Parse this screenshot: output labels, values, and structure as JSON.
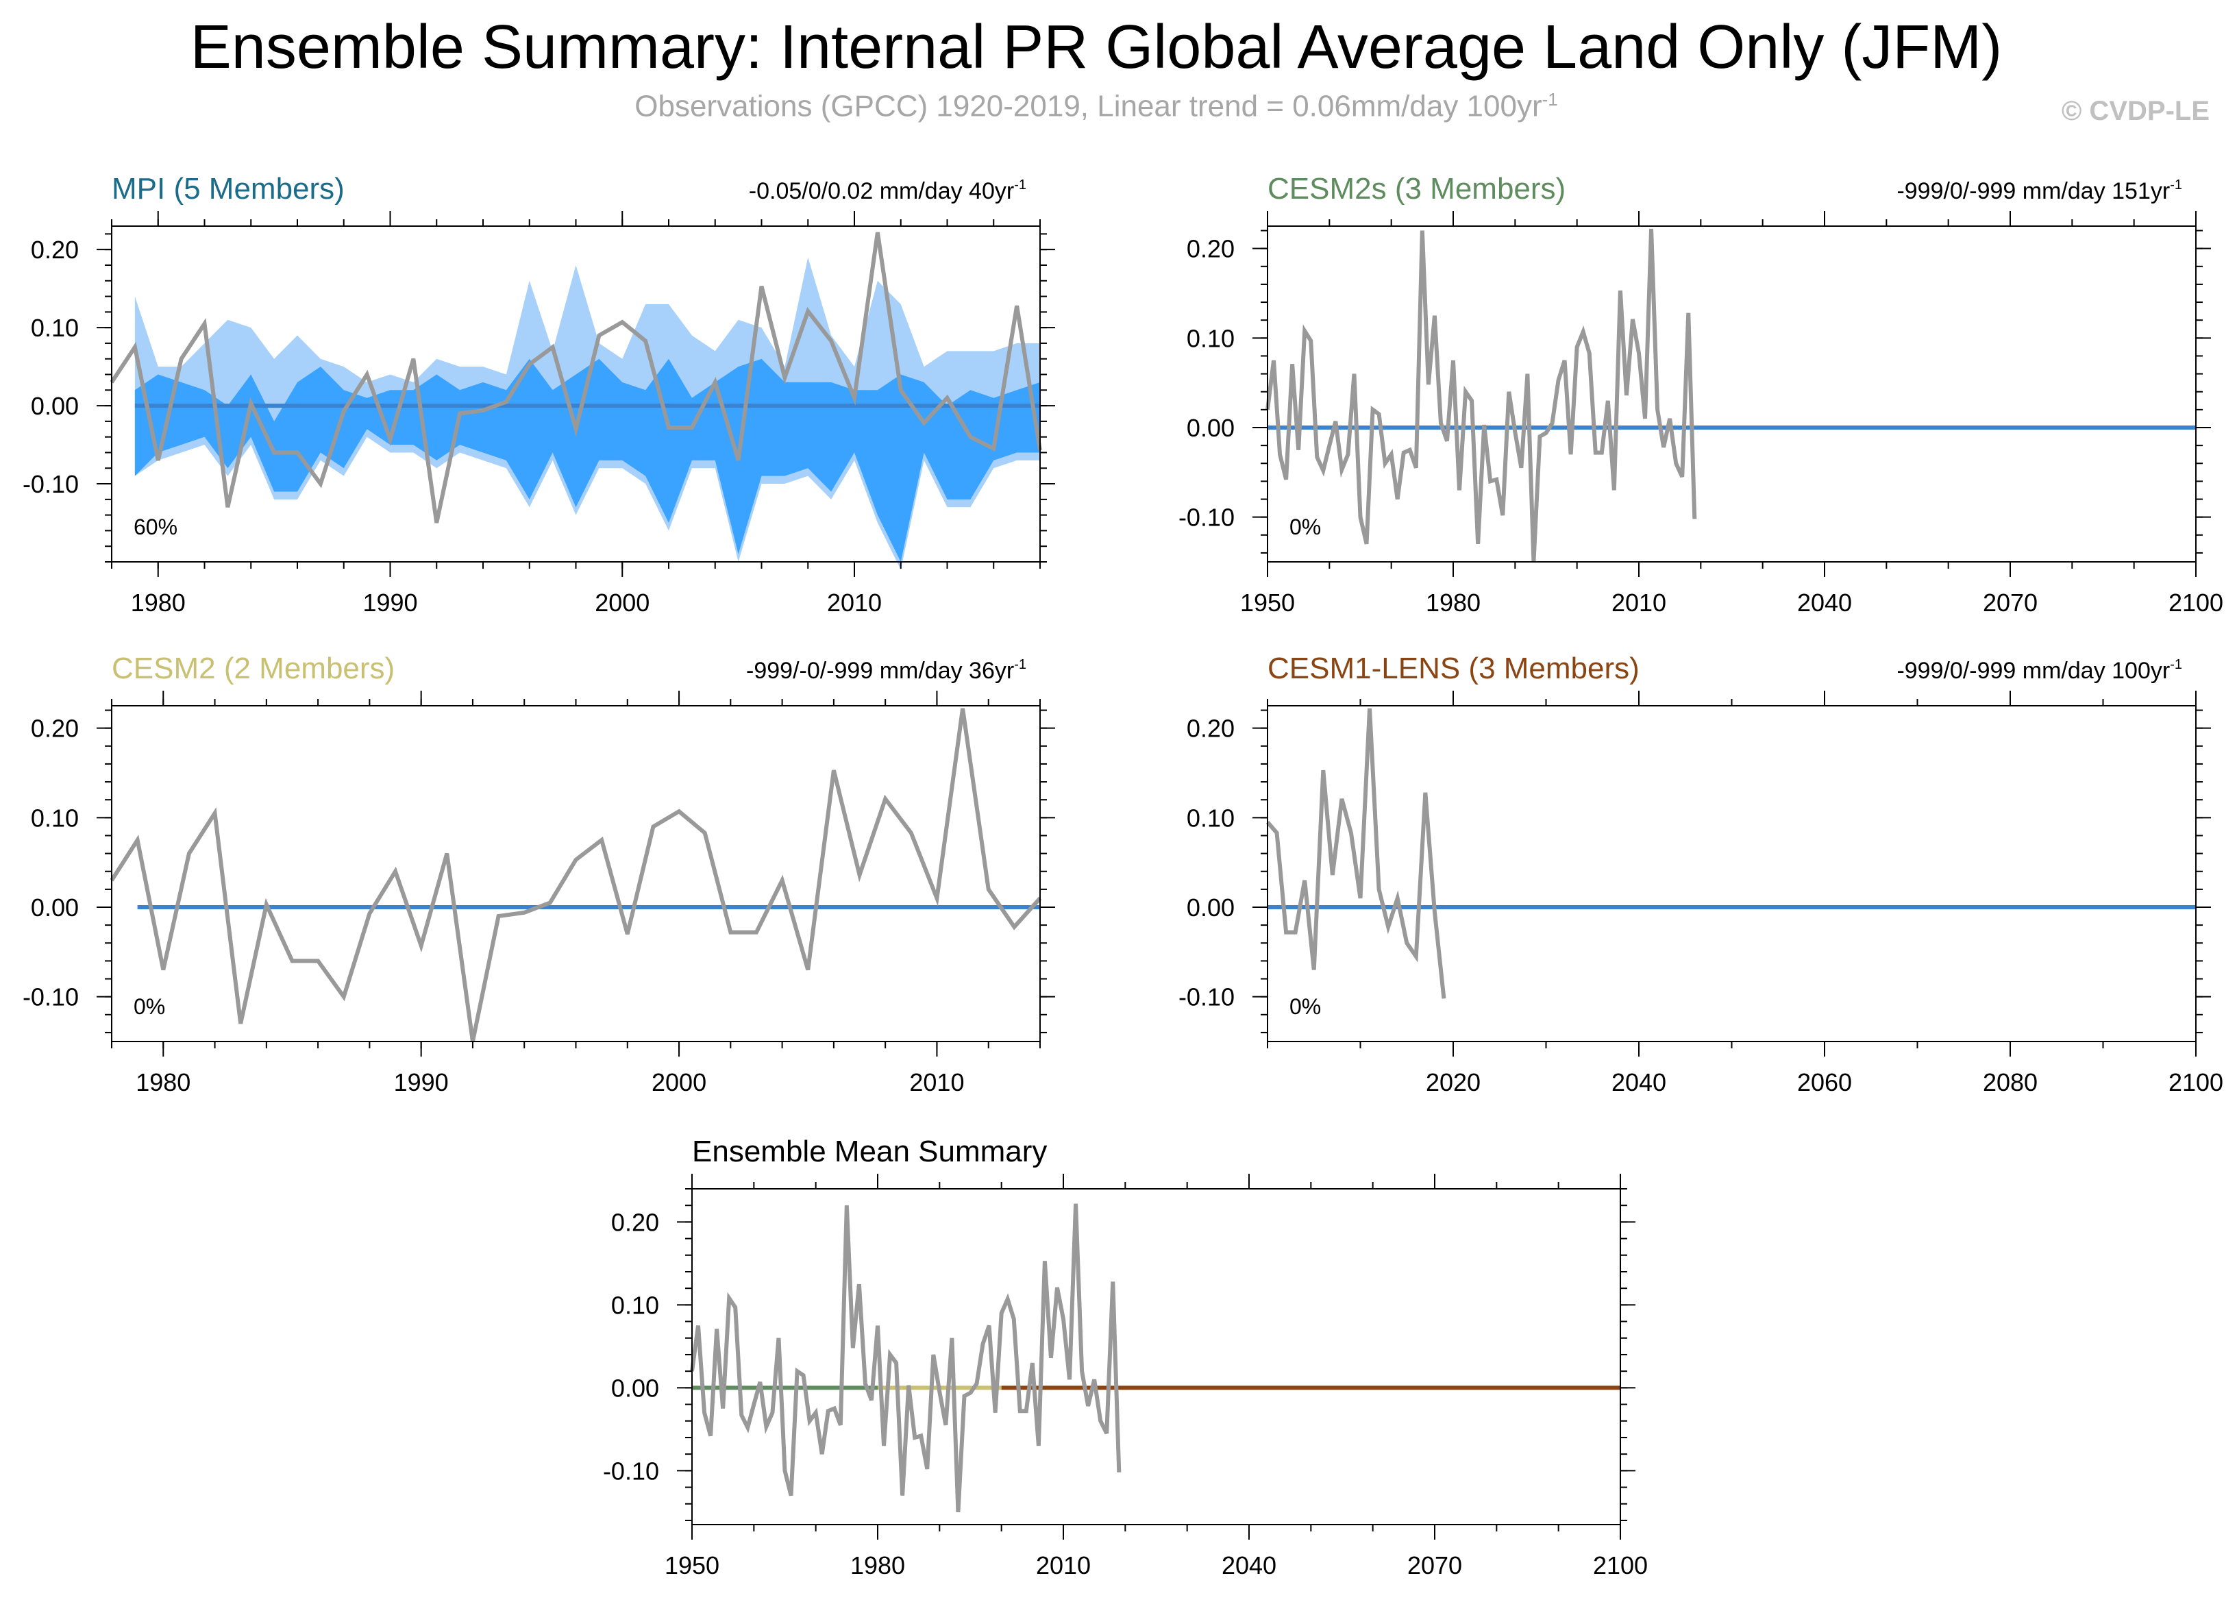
{
  "header": {
    "title": "Ensemble Summary: Internal PR Global Average Land Only (JFM)",
    "subtitle": "Observations (GPCC) 1920-2019, Linear trend = 0.06mm/day 100yr",
    "subtitle_sup": "-1",
    "credit": "© CVDP-LE"
  },
  "colors": {
    "obs": "#999999",
    "mpi": "#1b6b8a",
    "cesm2s": "#5e8c5e",
    "cesm2": "#c9c072",
    "cesm1": "#8b4513",
    "mean_line": "#3a83d0",
    "spread_outer": "#a7d1fb",
    "spread_inner": "#3aa2ff"
  },
  "chart_data": [
    {
      "id": "mpi",
      "type": "line",
      "title": "MPI (5 Members)",
      "trend_text": "-0.05/0/0.02 mm/day 40yr",
      "trend_sup": "-1",
      "percent_label": "60%",
      "xlim": [
        1978,
        2018
      ],
      "ylim": [
        -0.2,
        0.23
      ],
      "xticks": [
        1980,
        1990,
        2000,
        2010
      ],
      "yticks": [
        0.2,
        0.1,
        0.0,
        -0.1
      ],
      "ytick_labels": [
        "0.20",
        "0.10",
        "0.00",
        "-0.10"
      ],
      "ensemble_mean": {
        "x": [
          1979,
          2018
        ],
        "y": [
          0.0,
          0.0
        ]
      },
      "spread": {
        "x": [
          1979,
          1980,
          1981,
          1982,
          1983,
          1984,
          1985,
          1986,
          1987,
          1988,
          1989,
          1990,
          1991,
          1992,
          1993,
          1994,
          1995,
          1996,
          1997,
          1998,
          1999,
          2000,
          2001,
          2002,
          2003,
          2004,
          2005,
          2006,
          2007,
          2008,
          2009,
          2010,
          2011,
          2012,
          2013,
          2014,
          2015,
          2016,
          2017,
          2018
        ],
        "outer_upper": [
          0.14,
          0.05,
          0.05,
          0.08,
          0.11,
          0.1,
          0.06,
          0.09,
          0.06,
          0.05,
          0.03,
          0.04,
          0.03,
          0.06,
          0.05,
          0.05,
          0.04,
          0.16,
          0.07,
          0.18,
          0.08,
          0.06,
          0.13,
          0.13,
          0.09,
          0.07,
          0.11,
          0.1,
          0.05,
          0.19,
          0.09,
          0.05,
          0.16,
          0.13,
          0.05,
          0.07,
          0.07,
          0.07,
          0.08,
          0.08
        ],
        "inner_upper": [
          0.02,
          0.04,
          0.03,
          0.02,
          0.0,
          0.04,
          -0.02,
          0.03,
          0.05,
          0.02,
          0.01,
          0.02,
          0.02,
          0.04,
          0.02,
          0.03,
          0.02,
          0.06,
          0.02,
          0.04,
          0.06,
          0.03,
          0.02,
          0.06,
          0.01,
          0.03,
          0.05,
          0.06,
          0.03,
          0.03,
          0.03,
          0.02,
          0.02,
          0.04,
          0.03,
          0.0,
          0.02,
          0.01,
          0.02,
          0.03
        ],
        "inner_lower": [
          -0.09,
          -0.06,
          -0.05,
          -0.04,
          -0.08,
          -0.04,
          -0.11,
          -0.11,
          -0.06,
          -0.08,
          -0.03,
          -0.05,
          -0.05,
          -0.07,
          -0.05,
          -0.06,
          -0.07,
          -0.12,
          -0.06,
          -0.13,
          -0.07,
          -0.07,
          -0.09,
          -0.15,
          -0.07,
          -0.07,
          -0.19,
          -0.09,
          -0.09,
          -0.08,
          -0.11,
          -0.06,
          -0.14,
          -0.2,
          -0.06,
          -0.12,
          -0.12,
          -0.07,
          -0.06,
          -0.06
        ],
        "outer_lower": [
          -0.09,
          -0.07,
          -0.06,
          -0.05,
          -0.09,
          -0.05,
          -0.12,
          -0.12,
          -0.07,
          -0.09,
          -0.04,
          -0.06,
          -0.06,
          -0.08,
          -0.06,
          -0.07,
          -0.08,
          -0.13,
          -0.07,
          -0.14,
          -0.08,
          -0.08,
          -0.1,
          -0.16,
          -0.08,
          -0.08,
          -0.2,
          -0.1,
          -0.1,
          -0.09,
          -0.12,
          -0.07,
          -0.15,
          -0.21,
          -0.07,
          -0.13,
          -0.13,
          -0.08,
          -0.07,
          -0.07
        ]
      },
      "observations": {
        "x": [
          1978,
          1979,
          1980,
          1981,
          1982,
          1983,
          1984,
          1985,
          1986,
          1987,
          1988,
          1989,
          1990,
          1991,
          1992,
          1993,
          1994,
          1995,
          1996,
          1997,
          1998,
          1999,
          2000,
          2001,
          2002,
          2003,
          2004,
          2005,
          2006,
          2007,
          2008,
          2009,
          2010,
          2011,
          2012,
          2013,
          2014,
          2015,
          2016,
          2017,
          2018
        ],
        "y": [
          0.03,
          0.075,
          -0.07,
          0.06,
          0.105,
          -0.13,
          0.003,
          -0.06,
          -0.06,
          -0.1,
          -0.007,
          0.04,
          -0.043,
          0.06,
          -0.15,
          -0.01,
          -0.006,
          0.005,
          0.053,
          0.075,
          -0.03,
          0.09,
          0.107,
          0.083,
          -0.028,
          -0.028,
          0.03,
          -0.07,
          0.153,
          0.036,
          0.121,
          0.083,
          0.01,
          0.222,
          0.02,
          -0.022,
          0.01,
          -0.04,
          -0.055,
          0.128,
          -0.057
        ]
      }
    },
    {
      "id": "cesm2s",
      "type": "line",
      "title": "CESM2s (3 Members)",
      "trend_text": "-999/0/-999 mm/day 151yr",
      "trend_sup": "-1",
      "percent_label": "0%",
      "xlim": [
        1950,
        2100
      ],
      "ylim": [
        -0.15,
        0.225
      ],
      "xticks": [
        1950,
        1980,
        2010,
        2040,
        2070,
        2100
      ],
      "yticks": [
        0.2,
        0.1,
        0.0,
        -0.1
      ],
      "ytick_labels": [
        "0.20",
        "0.10",
        "0.00",
        "-0.10"
      ],
      "ensemble_mean": {
        "x": [
          1950,
          2100
        ],
        "y": [
          0.0,
          0.0
        ]
      },
      "observations": {
        "x": [
          1950,
          1951,
          1952,
          1953,
          1954,
          1955,
          1956,
          1957,
          1958,
          1959,
          1960,
          1961,
          1962,
          1963,
          1964,
          1965,
          1966,
          1967,
          1968,
          1969,
          1970,
          1971,
          1972,
          1973,
          1974,
          1975,
          1976,
          1977,
          1978,
          1979,
          1980,
          1981,
          1982,
          1983,
          1984,
          1985,
          1986,
          1987,
          1988,
          1989,
          1990,
          1991,
          1992,
          1993,
          1994,
          1995,
          1996,
          1997,
          1998,
          1999,
          2000,
          2001,
          2002,
          2003,
          2004,
          2005,
          2006,
          2007,
          2008,
          2009,
          2010,
          2011,
          2012,
          2013,
          2014,
          2015,
          2016,
          2017,
          2018,
          2019
        ],
        "y": [
          0.02,
          0.075,
          -0.03,
          -0.058,
          0.071,
          -0.025,
          0.108,
          0.097,
          -0.033,
          -0.048,
          -0.02,
          0.007,
          -0.047,
          -0.03,
          0.06,
          -0.1,
          -0.13,
          0.02,
          0.015,
          -0.04,
          -0.03,
          -0.08,
          -0.028,
          -0.025,
          -0.045,
          0.22,
          0.048,
          0.125,
          0.005,
          -0.015,
          0.075,
          -0.07,
          0.04,
          0.03,
          -0.13,
          0.003,
          -0.06,
          -0.058,
          -0.098,
          0.04,
          -0.005,
          -0.045,
          0.06,
          -0.15,
          -0.01,
          -0.006,
          0.005,
          0.053,
          0.075,
          -0.03,
          0.09,
          0.107,
          0.083,
          -0.028,
          -0.028,
          0.03,
          -0.07,
          0.153,
          0.036,
          0.121,
          0.083,
          0.01,
          0.222,
          0.02,
          -0.022,
          0.01,
          -0.04,
          -0.055,
          0.128,
          -0.102
        ]
      }
    },
    {
      "id": "cesm2",
      "type": "line",
      "title": "CESM2 (2 Members)",
      "trend_text": "-999/-0/-999 mm/day 36yr",
      "trend_sup": "-1",
      "percent_label": "0%",
      "xlim": [
        1978,
        2014
      ],
      "ylim": [
        -0.15,
        0.225
      ],
      "xticks": [
        1980,
        1990,
        2000,
        2010
      ],
      "yticks": [
        0.2,
        0.1,
        0.0,
        -0.1
      ],
      "ytick_labels": [
        "0.20",
        "0.10",
        "0.00",
        "-0.10"
      ],
      "ensemble_mean": {
        "x": [
          1979,
          2014
        ],
        "y": [
          0.0,
          0.0
        ]
      },
      "observations": {
        "x": [
          1978,
          1979,
          1980,
          1981,
          1982,
          1983,
          1984,
          1985,
          1986,
          1987,
          1988,
          1989,
          1990,
          1991,
          1992,
          1993,
          1994,
          1995,
          1996,
          1997,
          1998,
          1999,
          2000,
          2001,
          2002,
          2003,
          2004,
          2005,
          2006,
          2007,
          2008,
          2009,
          2010,
          2011,
          2012,
          2013,
          2014
        ],
        "y": [
          0.03,
          0.075,
          -0.07,
          0.06,
          0.105,
          -0.13,
          0.003,
          -0.06,
          -0.06,
          -0.1,
          -0.007,
          0.04,
          -0.043,
          0.06,
          -0.15,
          -0.01,
          -0.006,
          0.005,
          0.053,
          0.075,
          -0.03,
          0.09,
          0.107,
          0.083,
          -0.028,
          -0.028,
          0.03,
          -0.07,
          0.153,
          0.036,
          0.121,
          0.083,
          0.01,
          0.222,
          0.02,
          -0.022,
          0.01
        ]
      }
    },
    {
      "id": "cesm1",
      "type": "line",
      "title": "CESM1-LENS (3 Members)",
      "trend_text": "-999/0/-999 mm/day 100yr",
      "trend_sup": "-1",
      "percent_label": "0%",
      "xlim": [
        2000,
        2100
      ],
      "ylim": [
        -0.15,
        0.225
      ],
      "xticks": [
        2020,
        2040,
        2060,
        2080,
        2100
      ],
      "yticks": [
        0.2,
        0.1,
        0.0,
        -0.1
      ],
      "ytick_labels": [
        "0.20",
        "0.10",
        "0.00",
        "-0.10"
      ],
      "ensemble_mean": {
        "x": [
          2000,
          2100
        ],
        "y": [
          0.0,
          0.0
        ]
      },
      "observations": {
        "x": [
          2000,
          2001,
          2002,
          2003,
          2004,
          2005,
          2006,
          2007,
          2008,
          2009,
          2010,
          2011,
          2012,
          2013,
          2014,
          2015,
          2016,
          2017,
          2018,
          2019
        ],
        "y": [
          0.095,
          0.083,
          -0.028,
          -0.028,
          0.03,
          -0.07,
          0.153,
          0.036,
          0.121,
          0.083,
          0.01,
          0.222,
          0.02,
          -0.022,
          0.01,
          -0.04,
          -0.055,
          0.128,
          -0.005,
          -0.102
        ]
      }
    },
    {
      "id": "summary",
      "type": "line",
      "title": "Ensemble Mean Summary",
      "xlim": [
        1950,
        2100
      ],
      "ylim": [
        -0.165,
        0.24
      ],
      "xticks": [
        1950,
        1980,
        2010,
        2040,
        2070,
        2100
      ],
      "yticks": [
        0.2,
        0.1,
        0.0,
        -0.1
      ],
      "ytick_labels": [
        "0.20",
        "0.10",
        "0.00",
        "-0.10"
      ],
      "ensemble_means": [
        {
          "name": "CESM2s",
          "x": [
            1950,
            1980
          ],
          "y": [
            0.0,
            0.0
          ],
          "color_key": "cesm2s"
        },
        {
          "name": "CESM2",
          "x": [
            1980,
            2000
          ],
          "y": [
            0.0,
            0.0
          ],
          "color_key": "cesm2"
        },
        {
          "name": "CESM1-LENS",
          "x": [
            2000,
            2100
          ],
          "y": [
            0.0,
            0.0
          ],
          "color_key": "cesm1"
        }
      ],
      "observations": {
        "x": [
          1950,
          1951,
          1952,
          1953,
          1954,
          1955,
          1956,
          1957,
          1958,
          1959,
          1960,
          1961,
          1962,
          1963,
          1964,
          1965,
          1966,
          1967,
          1968,
          1969,
          1970,
          1971,
          1972,
          1973,
          1974,
          1975,
          1976,
          1977,
          1978,
          1979,
          1980,
          1981,
          1982,
          1983,
          1984,
          1985,
          1986,
          1987,
          1988,
          1989,
          1990,
          1991,
          1992,
          1993,
          1994,
          1995,
          1996,
          1997,
          1998,
          1999,
          2000,
          2001,
          2002,
          2003,
          2004,
          2005,
          2006,
          2007,
          2008,
          2009,
          2010,
          2011,
          2012,
          2013,
          2014,
          2015,
          2016,
          2017,
          2018,
          2019
        ],
        "y": [
          0.02,
          0.075,
          -0.03,
          -0.058,
          0.071,
          -0.025,
          0.108,
          0.097,
          -0.033,
          -0.048,
          -0.02,
          0.007,
          -0.047,
          -0.03,
          0.06,
          -0.1,
          -0.13,
          0.02,
          0.015,
          -0.04,
          -0.03,
          -0.08,
          -0.028,
          -0.025,
          -0.045,
          0.22,
          0.048,
          0.125,
          0.005,
          -0.015,
          0.075,
          -0.07,
          0.04,
          0.03,
          -0.13,
          0.003,
          -0.06,
          -0.058,
          -0.098,
          0.04,
          -0.005,
          -0.045,
          0.06,
          -0.15,
          -0.01,
          -0.006,
          0.005,
          0.053,
          0.075,
          -0.03,
          0.09,
          0.107,
          0.083,
          -0.028,
          -0.028,
          0.03,
          -0.07,
          0.153,
          0.036,
          0.121,
          0.083,
          0.01,
          0.222,
          0.02,
          -0.022,
          0.01,
          -0.04,
          -0.055,
          0.128,
          -0.102
        ]
      }
    }
  ]
}
